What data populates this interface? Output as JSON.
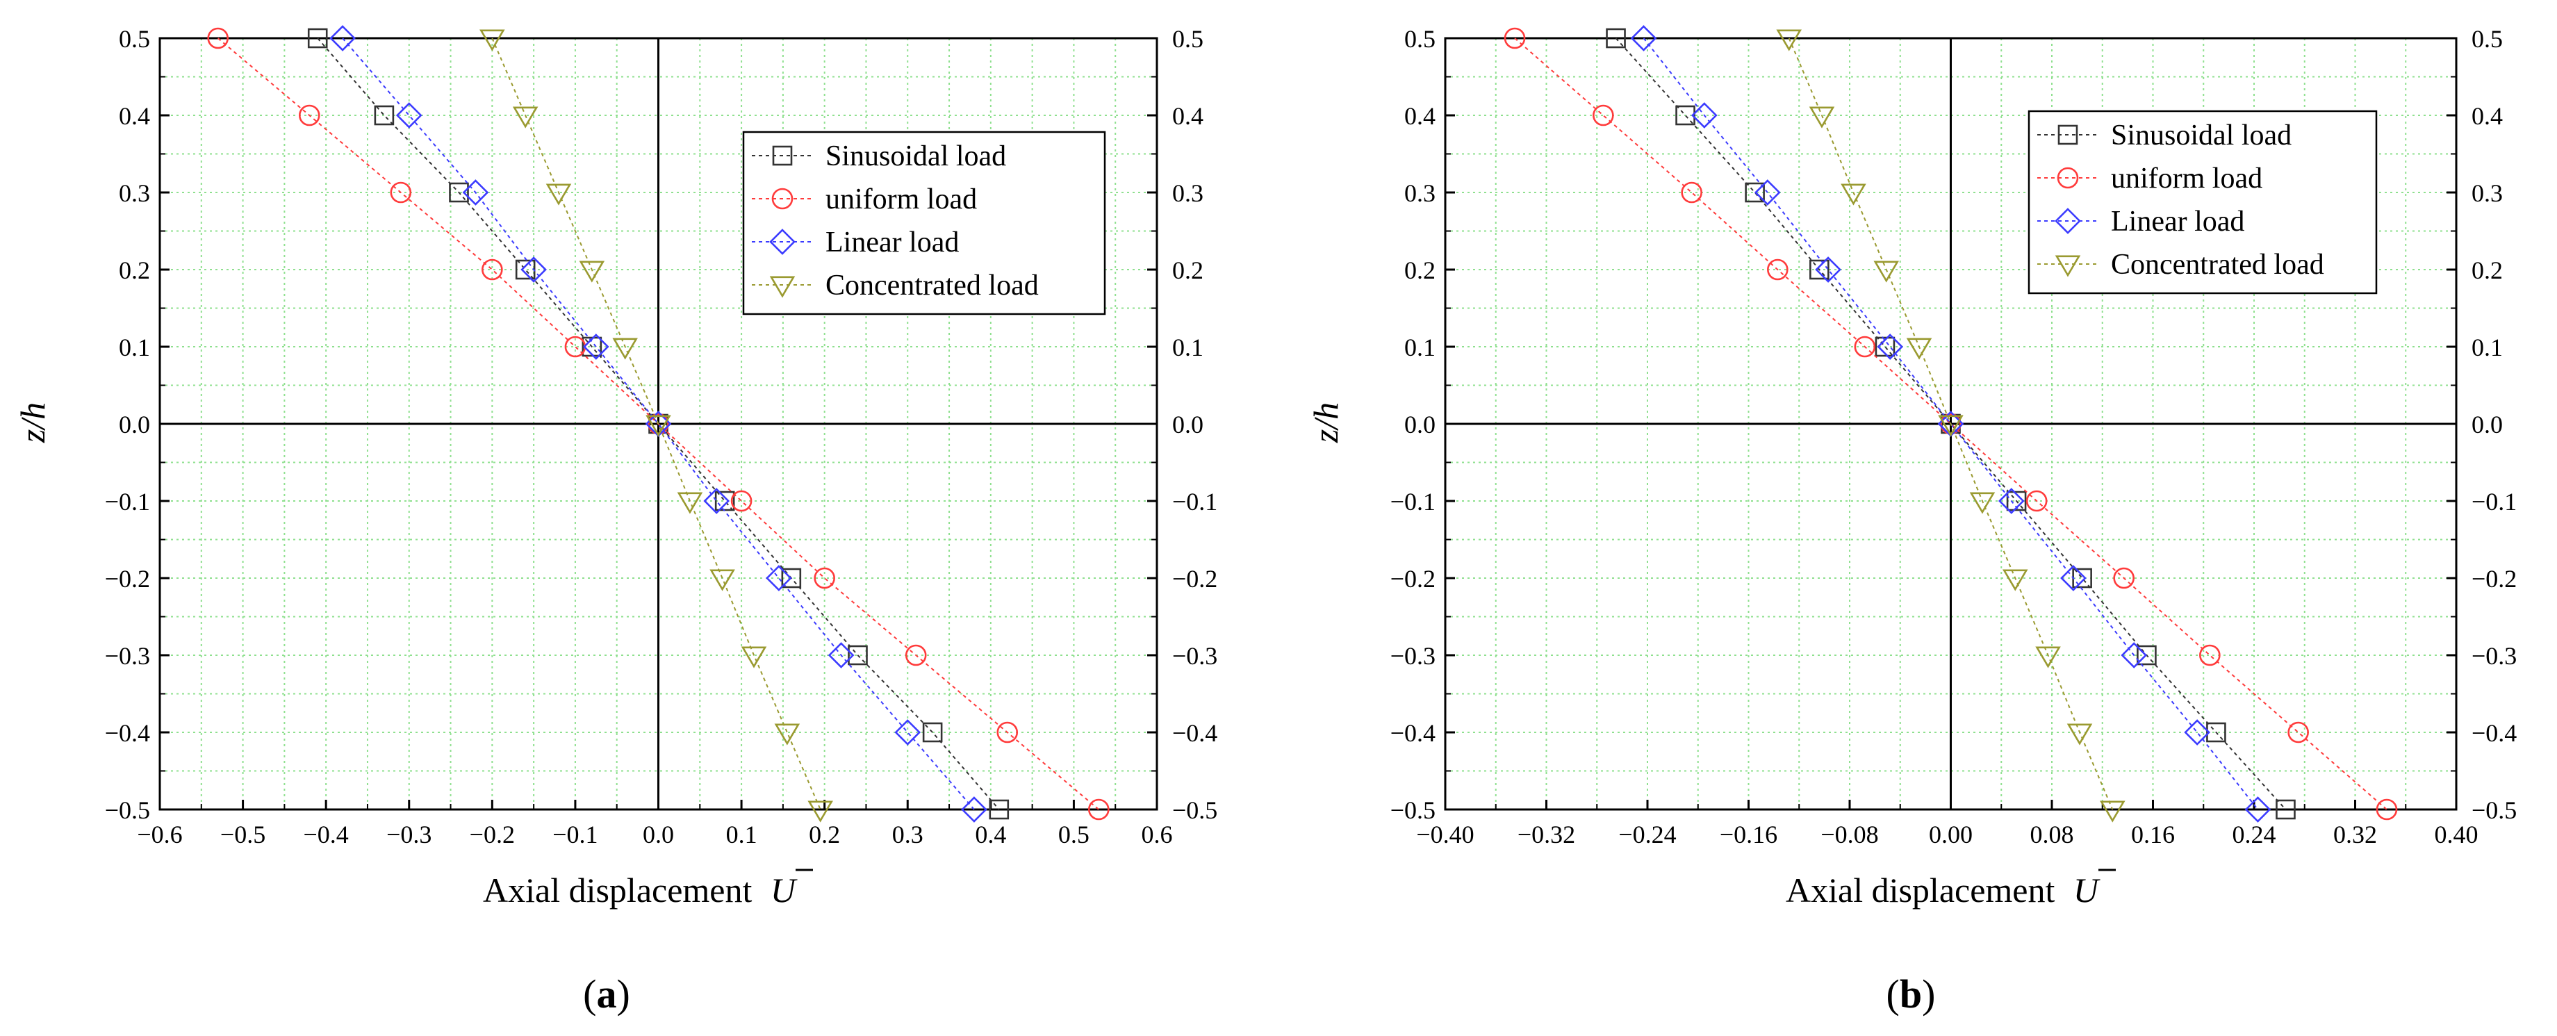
{
  "panels": [
    {
      "id": "a",
      "label_prefix": "(",
      "label_letter": "a",
      "label_suffix": ")",
      "xlabel": "Axial displacement",
      "xlabel_symbol": "U",
      "ylabel": "z/h"
    },
    {
      "id": "b",
      "label_prefix": "(",
      "label_letter": "b",
      "label_suffix": ")",
      "xlabel": "Axial displacement",
      "xlabel_symbol": "U",
      "ylabel": "z/h"
    }
  ],
  "chart_data": [
    {
      "type": "line",
      "panel": "a",
      "xlabel": "Axial displacement U",
      "ylabel": "z/h",
      "xlim": [
        -0.6,
        0.6
      ],
      "ylim": [
        -0.5,
        0.5
      ],
      "x_ticks": [
        -0.6,
        -0.5,
        -0.4,
        -0.3,
        -0.2,
        -0.1,
        0.0,
        0.1,
        0.2,
        0.3,
        0.4,
        0.5,
        0.6
      ],
      "x_tick_labels": [
        "−0.6",
        "−0.5",
        "−0.4",
        "−0.3",
        "−0.2",
        "−0.1",
        "0.0",
        "0.1",
        "0.2",
        "0.3",
        "0.4",
        "0.5",
        "0.6"
      ],
      "y_ticks": [
        -0.5,
        -0.4,
        -0.3,
        -0.2,
        -0.1,
        0.0,
        0.1,
        0.2,
        0.3,
        0.4,
        0.5
      ],
      "y_tick_labels": [
        "−0.5",
        "−0.4",
        "−0.3",
        "−0.2",
        "−0.1",
        "0.0",
        "0.1",
        "0.2",
        "0.3",
        "0.4",
        "0.5"
      ],
      "grid": true,
      "legend_position": "upper-right",
      "series": [
        {
          "name": "Sinusoidal load",
          "color": "#333333",
          "marker": "square",
          "points": [
            [
              -0.41,
              0.5
            ],
            [
              -0.33,
              0.4
            ],
            [
              -0.24,
              0.3
            ],
            [
              -0.16,
              0.2
            ],
            [
              -0.08,
              0.1
            ],
            [
              0.0,
              0.0
            ],
            [
              0.08,
              -0.1
            ],
            [
              0.16,
              -0.2
            ],
            [
              0.24,
              -0.3
            ],
            [
              0.33,
              -0.4
            ],
            [
              0.41,
              -0.5
            ]
          ]
        },
        {
          "name": "uniform load",
          "color": "#ff3b3b",
          "marker": "circle",
          "points": [
            [
              -0.53,
              0.5
            ],
            [
              -0.42,
              0.4
            ],
            [
              -0.31,
              0.3
            ],
            [
              -0.2,
              0.2
            ],
            [
              -0.1,
              0.1
            ],
            [
              0.0,
              0.0
            ],
            [
              0.1,
              -0.1
            ],
            [
              0.2,
              -0.2
            ],
            [
              0.31,
              -0.3
            ],
            [
              0.42,
              -0.4
            ],
            [
              0.53,
              -0.5
            ]
          ]
        },
        {
          "name": "Linear load",
          "color": "#3b3bff",
          "marker": "diamond",
          "points": [
            [
              -0.38,
              0.5
            ],
            [
              -0.3,
              0.4
            ],
            [
              -0.22,
              0.3
            ],
            [
              -0.15,
              0.2
            ],
            [
              -0.075,
              0.1
            ],
            [
              0.0,
              0.0
            ],
            [
              0.07,
              -0.1
            ],
            [
              0.145,
              -0.2
            ],
            [
              0.22,
              -0.3
            ],
            [
              0.3,
              -0.4
            ],
            [
              0.38,
              -0.5
            ]
          ]
        },
        {
          "name": "Concentrated load",
          "color": "#9a9a30",
          "marker": "triangle-down",
          "points": [
            [
              -0.2,
              0.5
            ],
            [
              -0.16,
              0.4
            ],
            [
              -0.12,
              0.3
            ],
            [
              -0.08,
              0.2
            ],
            [
              -0.04,
              0.1
            ],
            [
              0.0,
              0.0
            ],
            [
              0.038,
              -0.1
            ],
            [
              0.077,
              -0.2
            ],
            [
              0.115,
              -0.3
            ],
            [
              0.155,
              -0.4
            ],
            [
              0.195,
              -0.5
            ]
          ]
        }
      ]
    },
    {
      "type": "line",
      "panel": "b",
      "xlabel": "Axial displacement U",
      "ylabel": "z/h",
      "xlim": [
        -0.4,
        0.4
      ],
      "ylim": [
        -0.5,
        0.5
      ],
      "x_ticks": [
        -0.4,
        -0.32,
        -0.24,
        -0.16,
        -0.08,
        0.0,
        0.08,
        0.16,
        0.24,
        0.32,
        0.4
      ],
      "x_tick_labels": [
        "−0.40",
        "−0.32",
        "−0.24",
        "−0.16",
        "−0.08",
        "0.00",
        "0.08",
        "0.16",
        "0.24",
        "0.32",
        "0.40"
      ],
      "y_ticks": [
        -0.5,
        -0.4,
        -0.3,
        -0.2,
        -0.1,
        0.0,
        0.1,
        0.2,
        0.3,
        0.4,
        0.5
      ],
      "y_tick_labels": [
        "−0.5",
        "−0.4",
        "−0.3",
        "−0.2",
        "−0.1",
        "0.0",
        "0.1",
        "0.2",
        "0.3",
        "0.4",
        "0.5"
      ],
      "grid": true,
      "legend_position": "upper-right",
      "series": [
        {
          "name": "Sinusoidal load",
          "color": "#333333",
          "marker": "square",
          "points": [
            [
              -0.265,
              0.5
            ],
            [
              -0.21,
              0.4
            ],
            [
              -0.155,
              0.3
            ],
            [
              -0.104,
              0.2
            ],
            [
              -0.052,
              0.1
            ],
            [
              0.0,
              0.0
            ],
            [
              0.052,
              -0.1
            ],
            [
              0.104,
              -0.2
            ],
            [
              0.155,
              -0.3
            ],
            [
              0.21,
              -0.4
            ],
            [
              0.265,
              -0.5
            ]
          ]
        },
        {
          "name": "uniform load",
          "color": "#ff3b3b",
          "marker": "circle",
          "points": [
            [
              -0.345,
              0.5
            ],
            [
              -0.275,
              0.4
            ],
            [
              -0.205,
              0.3
            ],
            [
              -0.137,
              0.2
            ],
            [
              -0.068,
              0.1
            ],
            [
              0.0,
              0.0
            ],
            [
              0.068,
              -0.1
            ],
            [
              0.137,
              -0.2
            ],
            [
              0.205,
              -0.3
            ],
            [
              0.275,
              -0.4
            ],
            [
              0.345,
              -0.5
            ]
          ]
        },
        {
          "name": "Linear load",
          "color": "#3b3bff",
          "marker": "diamond",
          "points": [
            [
              -0.243,
              0.5
            ],
            [
              -0.195,
              0.4
            ],
            [
              -0.145,
              0.3
            ],
            [
              -0.097,
              0.2
            ],
            [
              -0.048,
              0.1
            ],
            [
              0.0,
              0.0
            ],
            [
              0.048,
              -0.1
            ],
            [
              0.097,
              -0.2
            ],
            [
              0.145,
              -0.3
            ],
            [
              0.195,
              -0.4
            ],
            [
              0.243,
              -0.5
            ]
          ]
        },
        {
          "name": "Concentrated load",
          "color": "#9a9a30",
          "marker": "triangle-down",
          "points": [
            [
              -0.128,
              0.5
            ],
            [
              -0.102,
              0.4
            ],
            [
              -0.077,
              0.3
            ],
            [
              -0.051,
              0.2
            ],
            [
              -0.025,
              0.1
            ],
            [
              0.0,
              0.0
            ],
            [
              0.025,
              -0.1
            ],
            [
              0.051,
              -0.2
            ],
            [
              0.077,
              -0.3
            ],
            [
              0.102,
              -0.4
            ],
            [
              0.128,
              -0.5
            ]
          ]
        }
      ]
    }
  ]
}
